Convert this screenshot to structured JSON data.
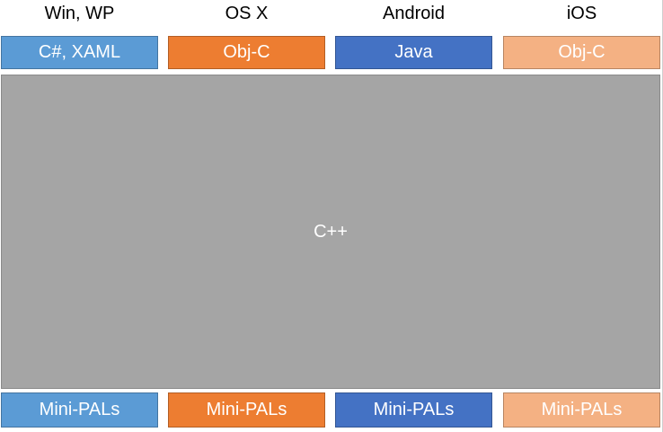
{
  "colors": {
    "win": "#5B9BD5",
    "osx": "#ED7D31",
    "android": "#4472C4",
    "ios": "#F4B183",
    "core": "#A5A5A5"
  },
  "columns": [
    {
      "platform": "Win, WP",
      "language": "C#, XAML",
      "pal": "Mini-PALs",
      "color_key": "win"
    },
    {
      "platform": "OS X",
      "language": "Obj-C",
      "pal": "Mini-PALs",
      "color_key": "osx"
    },
    {
      "platform": "Android",
      "language": "Java",
      "pal": "Mini-PALs",
      "color_key": "android"
    },
    {
      "platform": "iOS",
      "language": "Obj-C",
      "pal": "Mini-PALs",
      "color_key": "ios"
    }
  ],
  "core": {
    "label": "C++"
  }
}
